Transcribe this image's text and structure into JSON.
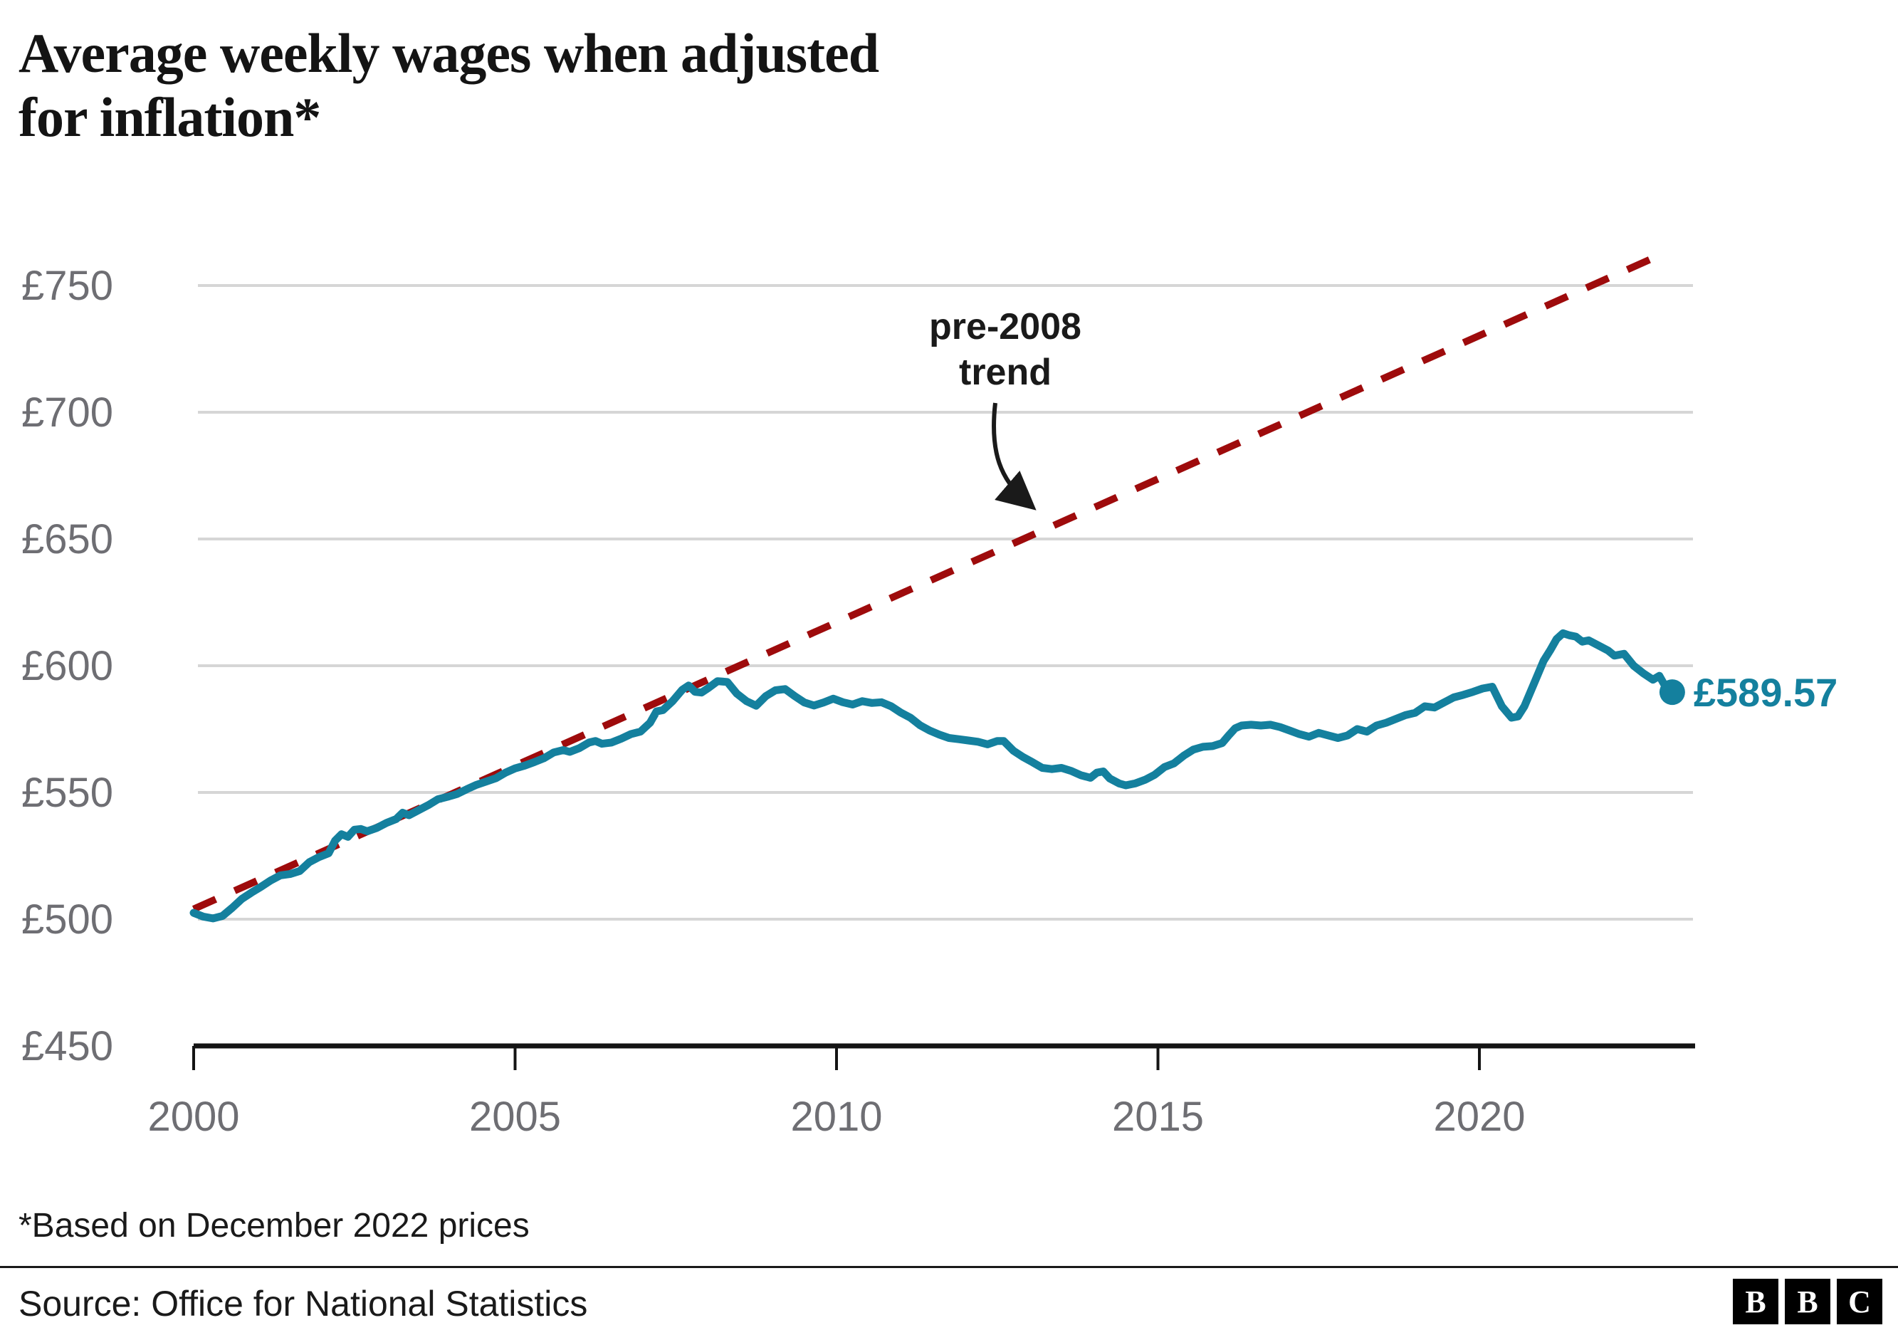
{
  "header": {
    "title": "Average weekly wages when adjusted for inflation*",
    "title_line1": "Average weekly wages when adjusted",
    "title_line2": "for inflation*"
  },
  "annotation": {
    "line1": "pre-2008",
    "line2": "trend"
  },
  "footnote": "*Based on December 2022 prices",
  "source": "Source: Office for National Statistics",
  "logo": {
    "letters": [
      "B",
      "B",
      "C"
    ]
  },
  "colors": {
    "wage_line": "#14809e",
    "trend_line": "#9e0b0c",
    "gridline": "#d6d6d6",
    "axis_line": "#141414",
    "axis_label": "#6e6e73",
    "annotation_text": "#1a1a1a"
  },
  "chart_data": {
    "type": "line",
    "title": "Average weekly wages when adjusted for inflation*",
    "xlabel": "",
    "ylabel": "",
    "grid": true,
    "x_axis": {
      "min": 2000,
      "max": 2023.4,
      "ticks": [
        2000,
        2005,
        2010,
        2015,
        2020
      ],
      "tick_labels": [
        "2000",
        "2005",
        "2010",
        "2015",
        "2020"
      ]
    },
    "y_axis": {
      "min": 450,
      "max": 750,
      "ticks": [
        450,
        500,
        550,
        600,
        650,
        700,
        750
      ],
      "tick_labels": [
        "£450",
        "£500",
        "£550",
        "£600",
        "£650",
        "£700",
        "£750"
      ]
    },
    "end_point": {
      "x": 2023.0,
      "y": 589.57,
      "label": "£589.57"
    },
    "series": [
      {
        "name": "pre-2008 trend",
        "style": "dashed",
        "points": [
          [
            2000.0,
            504
          ],
          [
            2022.72,
            761
          ]
        ]
      },
      {
        "name": "Average weekly wages adjusted for inflation",
        "style": "solid",
        "points": [
          [
            2000.0,
            502.5
          ],
          [
            2000.15,
            501.0
          ],
          [
            2000.3,
            500.3
          ],
          [
            2000.45,
            501.3
          ],
          [
            2000.6,
            504.5
          ],
          [
            2000.75,
            508.0
          ],
          [
            2000.9,
            510.5
          ],
          [
            2001.05,
            512.8
          ],
          [
            2001.2,
            515.3
          ],
          [
            2001.35,
            517.3
          ],
          [
            2001.5,
            517.8
          ],
          [
            2001.65,
            519.0
          ],
          [
            2001.8,
            522.5
          ],
          [
            2001.95,
            524.5
          ],
          [
            2002.1,
            526.0
          ],
          [
            2002.2,
            531.0
          ],
          [
            2002.3,
            533.5
          ],
          [
            2002.4,
            532.5
          ],
          [
            2002.5,
            535.3
          ],
          [
            2002.6,
            535.6
          ],
          [
            2002.7,
            534.7
          ],
          [
            2002.85,
            536.0
          ],
          [
            2003.0,
            538.0
          ],
          [
            2003.15,
            539.5
          ],
          [
            2003.25,
            542.0
          ],
          [
            2003.35,
            541.0
          ],
          [
            2003.5,
            543.0
          ],
          [
            2003.65,
            545.0
          ],
          [
            2003.8,
            547.3
          ],
          [
            2003.95,
            548.3
          ],
          [
            2004.1,
            549.4
          ],
          [
            2004.25,
            551.3
          ],
          [
            2004.4,
            553.0
          ],
          [
            2004.55,
            554.3
          ],
          [
            2004.7,
            555.6
          ],
          [
            2004.85,
            557.8
          ],
          [
            2005.0,
            559.5
          ],
          [
            2005.15,
            560.6
          ],
          [
            2005.3,
            562.0
          ],
          [
            2005.45,
            563.5
          ],
          [
            2005.6,
            565.8
          ],
          [
            2005.75,
            566.7
          ],
          [
            2005.85,
            566.0
          ],
          [
            2006.0,
            567.5
          ],
          [
            2006.15,
            569.7
          ],
          [
            2006.25,
            570.3
          ],
          [
            2006.35,
            569.2
          ],
          [
            2006.5,
            569.7
          ],
          [
            2006.65,
            571.2
          ],
          [
            2006.8,
            573.0
          ],
          [
            2006.95,
            574.0
          ],
          [
            2007.1,
            577.5
          ],
          [
            2007.2,
            582.0
          ],
          [
            2007.3,
            582.5
          ],
          [
            2007.45,
            586.0
          ],
          [
            2007.6,
            590.5
          ],
          [
            2007.7,
            592.2
          ],
          [
            2007.8,
            589.7
          ],
          [
            2007.9,
            589.4
          ],
          [
            2008.0,
            591.1
          ],
          [
            2008.15,
            593.9
          ],
          [
            2008.3,
            593.6
          ],
          [
            2008.45,
            589.0
          ],
          [
            2008.6,
            586.0
          ],
          [
            2008.75,
            584.2
          ],
          [
            2008.9,
            588.0
          ],
          [
            2009.05,
            590.3
          ],
          [
            2009.2,
            590.8
          ],
          [
            2009.35,
            588.0
          ],
          [
            2009.5,
            585.5
          ],
          [
            2009.65,
            584.3
          ],
          [
            2009.8,
            585.5
          ],
          [
            2009.95,
            587.0
          ],
          [
            2010.1,
            585.6
          ],
          [
            2010.25,
            584.7
          ],
          [
            2010.4,
            586.0
          ],
          [
            2010.55,
            585.3
          ],
          [
            2010.7,
            585.6
          ],
          [
            2010.85,
            584.0
          ],
          [
            2011.0,
            581.5
          ],
          [
            2011.15,
            579.5
          ],
          [
            2011.3,
            576.5
          ],
          [
            2011.45,
            574.4
          ],
          [
            2011.6,
            572.8
          ],
          [
            2011.75,
            571.5
          ],
          [
            2011.9,
            571.0
          ],
          [
            2012.05,
            570.5
          ],
          [
            2012.2,
            570.0
          ],
          [
            2012.35,
            569.0
          ],
          [
            2012.5,
            570.3
          ],
          [
            2012.6,
            570.3
          ],
          [
            2012.75,
            566.5
          ],
          [
            2012.9,
            564.0
          ],
          [
            2013.05,
            561.9
          ],
          [
            2013.2,
            559.7
          ],
          [
            2013.35,
            559.2
          ],
          [
            2013.5,
            559.7
          ],
          [
            2013.65,
            558.5
          ],
          [
            2013.8,
            556.8
          ],
          [
            2013.95,
            555.8
          ],
          [
            2014.05,
            557.8
          ],
          [
            2014.15,
            558.3
          ],
          [
            2014.25,
            555.5
          ],
          [
            2014.4,
            553.5
          ],
          [
            2014.5,
            552.8
          ],
          [
            2014.65,
            553.6
          ],
          [
            2014.8,
            555.0
          ],
          [
            2014.95,
            557.0
          ],
          [
            2015.1,
            560.0
          ],
          [
            2015.25,
            561.5
          ],
          [
            2015.4,
            564.5
          ],
          [
            2015.55,
            566.9
          ],
          [
            2015.7,
            568.0
          ],
          [
            2015.85,
            568.3
          ],
          [
            2016.0,
            569.5
          ],
          [
            2016.1,
            572.5
          ],
          [
            2016.2,
            575.3
          ],
          [
            2016.3,
            576.4
          ],
          [
            2016.45,
            576.7
          ],
          [
            2016.6,
            576.4
          ],
          [
            2016.75,
            576.7
          ],
          [
            2016.9,
            575.8
          ],
          [
            2017.05,
            574.4
          ],
          [
            2017.2,
            573.0
          ],
          [
            2017.35,
            572.0
          ],
          [
            2017.5,
            573.5
          ],
          [
            2017.65,
            572.5
          ],
          [
            2017.8,
            571.5
          ],
          [
            2017.95,
            572.5
          ],
          [
            2018.1,
            575.0
          ],
          [
            2018.25,
            574.0
          ],
          [
            2018.4,
            576.4
          ],
          [
            2018.55,
            577.5
          ],
          [
            2018.7,
            579.0
          ],
          [
            2018.85,
            580.5
          ],
          [
            2019.0,
            581.4
          ],
          [
            2019.15,
            584.0
          ],
          [
            2019.3,
            583.5
          ],
          [
            2019.45,
            585.5
          ],
          [
            2019.6,
            587.5
          ],
          [
            2019.75,
            588.5
          ],
          [
            2019.9,
            589.7
          ],
          [
            2020.05,
            591.0
          ],
          [
            2020.2,
            591.7
          ],
          [
            2020.35,
            584.0
          ],
          [
            2020.5,
            579.5
          ],
          [
            2020.6,
            580.0
          ],
          [
            2020.7,
            584.0
          ],
          [
            2020.85,
            593.0
          ],
          [
            2021.0,
            602.0
          ],
          [
            2021.1,
            606.0
          ],
          [
            2021.2,
            610.5
          ],
          [
            2021.3,
            612.8
          ],
          [
            2021.4,
            612.0
          ],
          [
            2021.5,
            611.5
          ],
          [
            2021.6,
            609.5
          ],
          [
            2021.7,
            610.0
          ],
          [
            2021.85,
            608.0
          ],
          [
            2022.0,
            606.0
          ],
          [
            2022.1,
            604.0
          ],
          [
            2022.25,
            604.7
          ],
          [
            2022.4,
            600.0
          ],
          [
            2022.55,
            597.0
          ],
          [
            2022.7,
            594.5
          ],
          [
            2022.8,
            596.0
          ],
          [
            2022.9,
            591.5
          ],
          [
            2023.0,
            589.57
          ]
        ]
      }
    ]
  }
}
